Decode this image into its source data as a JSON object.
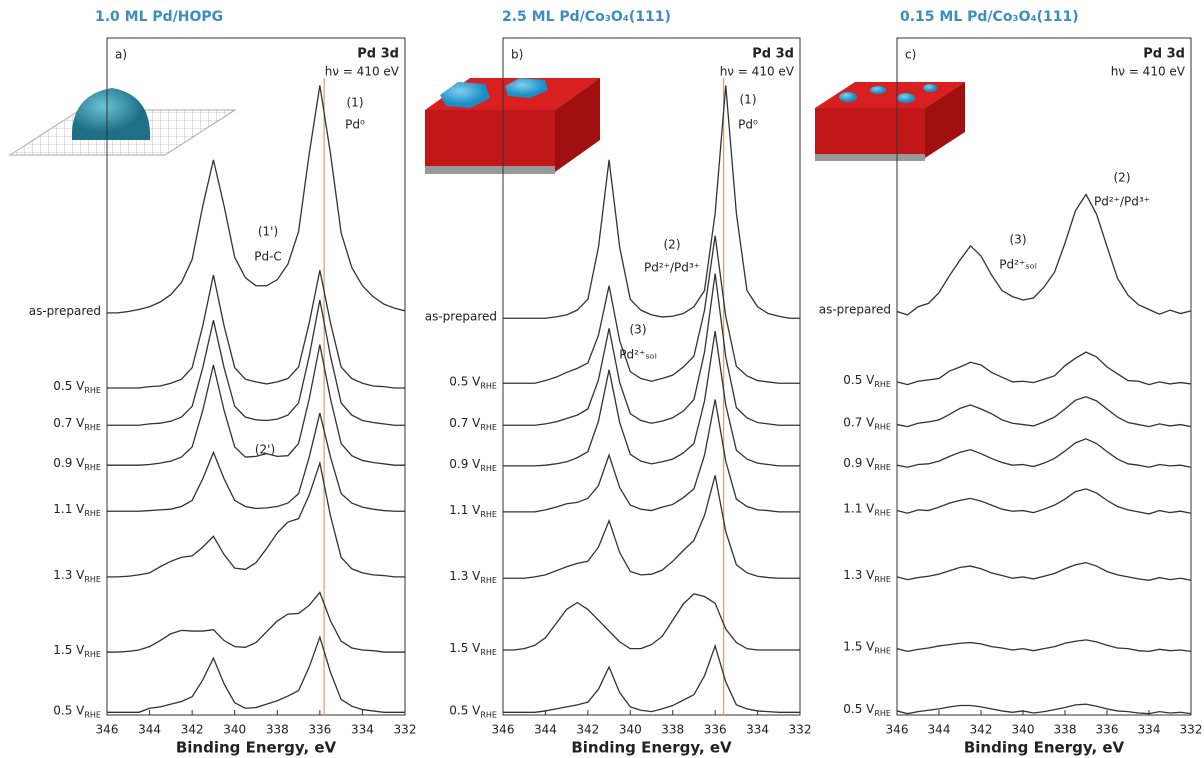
{
  "chart_data": [
    {
      "type": "line",
      "title": "1.0 ML Pd/HOPG",
      "panel_label": "a)",
      "header": "Pd 3d",
      "energy": "hν = 410 eV",
      "x_label": "Binding Energy, eV",
      "xlim": [
        346,
        332
      ],
      "xticks": [
        346,
        344,
        342,
        340,
        338,
        336,
        334,
        332
      ],
      "ylim": [
        0,
        100
      ],
      "ref_line": 335.8,
      "x": [
        346,
        345.5,
        345,
        344.5,
        344,
        343.5,
        343,
        342.5,
        342,
        341.5,
        341,
        340.5,
        340,
        339.5,
        339,
        338.5,
        338,
        337.5,
        337,
        336.5,
        336,
        335.5,
        335,
        334.5,
        334,
        333.5,
        333,
        332.5,
        332
      ],
      "series": [
        {
          "name": "as-prepared",
          "color": "#333333",
          "values": [
            59.4,
            59.4,
            59.6,
            59.9,
            60.3,
            61.0,
            62.1,
            63.9,
            67.3,
            75.2,
            82.0,
            75.2,
            67.6,
            64.6,
            63.4,
            63.4,
            64.3,
            66.6,
            71.4,
            82.9,
            93.0,
            82.9,
            71.2,
            66.1,
            63.4,
            61.8,
            60.7,
            60.1,
            59.7
          ]
        },
        {
          "name": "0.5 V",
          "name_sub": "RHE",
          "color": "#333333",
          "values": [
            48.3,
            48.3,
            48.3,
            48.3,
            48.5,
            48.6,
            49.0,
            49.6,
            51.3,
            57.5,
            65.0,
            57.5,
            51.3,
            49.6,
            49.2,
            48.9,
            49.2,
            49.7,
            51.4,
            57.9,
            65.7,
            57.9,
            51.4,
            49.7,
            49.0,
            48.6,
            48.5,
            48.3,
            48.3
          ]
        },
        {
          "name": "0.7 V",
          "name_sub": "RHE",
          "color": "#333333",
          "values": [
            42.8,
            42.8,
            42.8,
            42.8,
            43.0,
            43.1,
            43.4,
            44.0,
            45.6,
            51.3,
            58.3,
            51.3,
            45.6,
            44.0,
            43.6,
            43.5,
            43.7,
            44.3,
            46.1,
            53.0,
            61.3,
            53.0,
            46.1,
            44.3,
            43.5,
            43.2,
            43.0,
            42.8,
            42.8
          ]
        },
        {
          "name": "0.9 V",
          "name_sub": "RHE",
          "color": "#333333",
          "values": [
            36.9,
            36.9,
            36.9,
            36.9,
            37.0,
            37.2,
            37.5,
            38.1,
            39.6,
            45.0,
            51.7,
            45.0,
            39.6,
            38.1,
            38.2,
            38.6,
            38.2,
            38.3,
            40.1,
            46.7,
            54.7,
            46.7,
            40.1,
            38.3,
            37.6,
            37.3,
            37.1,
            36.9,
            36.9
          ]
        },
        {
          "name": "1.1 V",
          "name_sub": "RHE",
          "color": "#333333",
          "values": [
            30.1,
            30.1,
            30.1,
            30.1,
            30.2,
            30.3,
            30.4,
            30.8,
            31.7,
            34.9,
            38.8,
            34.9,
            31.7,
            30.8,
            30.5,
            30.6,
            30.8,
            31.3,
            32.7,
            38.1,
            44.6,
            38.1,
            32.7,
            31.3,
            30.7,
            30.4,
            30.2,
            30.1,
            30.1
          ]
        },
        {
          "name": "1.3 V",
          "name_sub": "RHE",
          "color": "#333333",
          "values": [
            20.4,
            20.4,
            20.5,
            20.7,
            21.0,
            21.9,
            22.7,
            23.3,
            23.5,
            24.8,
            26.4,
            23.7,
            21.7,
            21.5,
            22.5,
            24.6,
            26.9,
            28.5,
            29.0,
            32.5,
            37.2,
            29.4,
            23.3,
            21.6,
            21.0,
            20.7,
            20.6,
            20.4,
            20.4
          ]
        },
        {
          "name": "1.5 V",
          "name_sub": "RHE",
          "color": "#333333",
          "values": [
            9.3,
            9.3,
            9.4,
            9.6,
            10.1,
            11.0,
            12.0,
            12.5,
            12.4,
            12.4,
            12.6,
            11.0,
            10.1,
            10.0,
            10.7,
            12.3,
            13.9,
            14.9,
            15.0,
            16.2,
            18.1,
            13.9,
            10.9,
            9.9,
            9.6,
            9.5,
            9.3,
            9.3,
            9.3
          ]
        },
        {
          "name": "0.5 V",
          "name_sub": "RHE",
          "color": "#333333",
          "values": [
            0.4,
            0.4,
            0.4,
            0.4,
            1.0,
            1.2,
            1.6,
            2.0,
            2.7,
            5.2,
            8.4,
            4.6,
            1.8,
            1.0,
            1.1,
            1.6,
            2.1,
            2.8,
            3.6,
            7.1,
            11.5,
            6.3,
            2.3,
            1.3,
            0.8,
            0.6,
            0.4,
            0.4,
            0.4
          ]
        }
      ],
      "annotations": [
        "(1)",
        "Pd⁰",
        "(1')",
        "Pd-C",
        "(2')"
      ]
    },
    {
      "type": "line",
      "title": "2.5 ML Pd/Co₃O₄(111)",
      "panel_label": "b)",
      "header": "Pd 3d",
      "energy": "hν = 410 eV",
      "x_label": "Binding Energy, eV",
      "xlim": [
        346,
        332
      ],
      "xticks": [
        346,
        344,
        342,
        340,
        338,
        336,
        334,
        332
      ],
      "ylim": [
        0,
        100
      ],
      "ref_line": 335.6,
      "x": [
        346,
        345.5,
        345,
        344.5,
        344,
        343.5,
        343,
        342.5,
        342,
        341.5,
        341,
        340.5,
        340,
        339.5,
        339,
        338.5,
        338,
        337.5,
        337,
        336.5,
        336,
        335.5,
        335,
        334.5,
        334,
        333.5,
        333,
        332.5,
        332
      ],
      "series": [
        {
          "name": "as-prepared",
          "color": "#333333",
          "values": [
            58.6,
            58.6,
            58.6,
            58.6,
            58.6,
            58.8,
            59.1,
            59.8,
            61.4,
            69.1,
            82.0,
            69.1,
            61.4,
            59.8,
            59.1,
            58.8,
            58.9,
            59.3,
            60.3,
            62.7,
            74.1,
            93.0,
            74.1,
            62.7,
            60.3,
            59.3,
            58.9,
            58.6,
            58.6
          ]
        },
        {
          "name": "0.5 V",
          "name_sub": "RHE",
          "color": "#333333",
          "values": [
            49.0,
            49.0,
            49.0,
            49.0,
            49.4,
            49.9,
            50.6,
            51.2,
            52.0,
            56.1,
            63.4,
            55.3,
            50.7,
            49.7,
            49.3,
            49.7,
            50.2,
            51.4,
            53.0,
            59.8,
            70.8,
            58.9,
            51.5,
            50.1,
            49.4,
            49.2,
            49.0,
            49.0,
            49.0
          ]
        },
        {
          "name": "0.7 V",
          "name_sub": "RHE",
          "color": "#333333",
          "values": [
            42.8,
            42.8,
            42.8,
            42.8,
            43.0,
            43.3,
            43.8,
            44.3,
            45.2,
            49.5,
            57.1,
            49.1,
            44.5,
            43.5,
            43.1,
            43.4,
            43.9,
            44.9,
            46.6,
            53.6,
            65.2,
            52.9,
            45.4,
            43.9,
            43.2,
            43.0,
            42.8,
            42.8,
            42.8
          ]
        },
        {
          "name": "0.9 V",
          "name_sub": "RHE",
          "color": "#333333",
          "values": [
            36.8,
            36.8,
            36.8,
            36.8,
            36.9,
            37.1,
            37.4,
            38.0,
            38.9,
            43.4,
            51.0,
            43.2,
            38.5,
            37.5,
            37.1,
            37.4,
            37.8,
            38.7,
            40.1,
            46.4,
            56.7,
            45.8,
            39.1,
            37.8,
            37.2,
            37.0,
            36.8,
            36.8,
            36.8
          ]
        },
        {
          "name": "1.1 V",
          "name_sub": "RHE",
          "color": "#333333",
          "values": [
            30.0,
            30.0,
            30.0,
            30.0,
            30.3,
            30.7,
            31.2,
            31.4,
            32.0,
            33.9,
            38.4,
            33.6,
            31.0,
            30.4,
            30.2,
            30.7,
            31.1,
            32.1,
            33.4,
            38.4,
            46.6,
            37.5,
            31.9,
            30.8,
            30.3,
            30.2,
            30.0,
            30.0,
            30.0
          ]
        },
        {
          "name": "1.3 V",
          "name_sub": "RHE",
          "color": "#333333",
          "values": [
            20.2,
            20.2,
            20.2,
            20.4,
            20.7,
            21.3,
            21.9,
            22.4,
            22.7,
            24.8,
            28.7,
            24.0,
            21.2,
            20.7,
            20.8,
            21.4,
            22.7,
            24.3,
            25.8,
            29.5,
            35.4,
            27.1,
            22.2,
            21.0,
            20.5,
            20.3,
            20.2,
            20.2,
            20.2
          ]
        },
        {
          "name": "1.5 V",
          "name_sub": "RHE",
          "color": "#333333",
          "values": [
            9.6,
            9.6,
            9.8,
            10.3,
            11.4,
            13.5,
            15.6,
            16.6,
            15.6,
            14.0,
            12.4,
            10.8,
            9.8,
            9.8,
            10.4,
            11.6,
            14.0,
            16.4,
            17.9,
            17.5,
            16.5,
            12.7,
            10.7,
            9.8,
            9.6,
            9.6,
            9.6,
            9.6,
            9.6
          ]
        },
        {
          "name": "0.5 V",
          "name_sub": "RHE",
          "color": "#333333",
          "values": [
            0.4,
            0.4,
            0.4,
            0.4,
            0.6,
            0.9,
            1.2,
            1.5,
            1.9,
            3.8,
            7.1,
            3.3,
            1.2,
            0.7,
            0.5,
            0.9,
            1.4,
            2.2,
            3.0,
            5.8,
            10.2,
            4.9,
            1.5,
            0.9,
            0.6,
            0.5,
            0.4,
            0.4,
            0.4
          ]
        }
      ],
      "annotations": [
        "(1)",
        "Pd⁰",
        "(2)",
        "Pd²⁺/Pd³⁺",
        "(3)",
        "Pd²⁺ₛₒₗ"
      ]
    },
    {
      "type": "line",
      "title": "0.15 ML Pd/Co₃O₄(111)",
      "panel_label": "c)",
      "header": "Pd 3d",
      "energy": "hν = 410 eV",
      "x_label": "Binding Energy, eV",
      "xlim": [
        346,
        332
      ],
      "xticks": [
        346,
        344,
        342,
        340,
        338,
        336,
        334,
        332
      ],
      "ylim": [
        0,
        100
      ],
      "x": [
        346,
        345.5,
        345,
        344.5,
        344,
        343.5,
        343,
        342.5,
        342,
        341.5,
        341,
        340.5,
        340,
        339.5,
        339,
        338.5,
        338,
        337.5,
        337,
        336.5,
        336,
        335.5,
        335,
        334.5,
        334,
        333.5,
        333,
        332.5,
        332
      ],
      "series": [
        {
          "name": "as-prepared",
          "color": "#333333",
          "values": [
            59.6,
            59.1,
            60.3,
            60.8,
            62.4,
            64.9,
            67.2,
            69.3,
            67.8,
            65.0,
            62.7,
            61.8,
            61.3,
            61.6,
            63.2,
            65.4,
            69.7,
            74.5,
            76.9,
            74.0,
            69.2,
            64.5,
            62.0,
            60.6,
            59.9,
            59.2,
            59.8,
            59.3,
            59.7
          ]
        },
        {
          "name": "0.5 V",
          "name_sub": "RHE",
          "color": "#333333",
          "values": [
            49.2,
            48.8,
            49.3,
            49.5,
            49.7,
            50.8,
            51.4,
            52.1,
            51.7,
            50.6,
            49.9,
            49.2,
            49.3,
            49.1,
            49.6,
            50.1,
            51.6,
            52.7,
            53.6,
            52.9,
            51.4,
            50.4,
            49.4,
            49.3,
            48.8,
            49.2,
            48.9,
            49.1,
            48.9
          ]
        },
        {
          "name": "0.7 V",
          "name_sub": "RHE",
          "color": "#333333",
          "values": [
            42.9,
            42.6,
            43.1,
            43.3,
            43.6,
            44.4,
            45.3,
            45.8,
            45.2,
            44.5,
            43.6,
            43.1,
            42.9,
            42.7,
            43.3,
            44.0,
            45.2,
            46.5,
            47.0,
            46.4,
            45.2,
            44.0,
            43.2,
            42.9,
            42.6,
            43.0,
            42.7,
            42.9,
            42.6
          ]
        },
        {
          "name": "0.9 V",
          "name_sub": "RHE",
          "color": "#333333",
          "values": [
            36.9,
            36.6,
            37.0,
            37.1,
            37.5,
            38.2,
            38.8,
            39.2,
            38.6,
            37.9,
            37.3,
            36.9,
            37.0,
            36.7,
            37.2,
            37.9,
            39.0,
            40.2,
            40.8,
            40.1,
            38.9,
            37.8,
            37.1,
            36.9,
            36.6,
            37.0,
            36.8,
            36.9,
            36.6
          ]
        },
        {
          "name": "1.1 V",
          "name_sub": "RHE",
          "color": "#333333",
          "values": [
            30.2,
            29.8,
            30.3,
            30.2,
            30.7,
            31.3,
            31.7,
            32.0,
            31.6,
            31.0,
            30.4,
            30.1,
            30.2,
            29.9,
            30.4,
            31.0,
            31.9,
            33.0,
            33.4,
            32.8,
            31.7,
            30.8,
            30.3,
            30.0,
            29.7,
            30.2,
            29.9,
            30.1,
            29.8
          ]
        },
        {
          "name": "1.3 V",
          "name_sub": "RHE",
          "color": "#333333",
          "values": [
            20.4,
            20.0,
            20.3,
            20.5,
            20.8,
            21.3,
            21.8,
            22.0,
            21.6,
            21.0,
            20.6,
            20.2,
            20.4,
            20.1,
            20.5,
            20.9,
            21.6,
            22.2,
            22.5,
            22.0,
            21.2,
            20.7,
            20.4,
            20.1,
            19.9,
            20.3,
            20.0,
            20.2,
            19.9
          ]
        },
        {
          "name": "1.5 V",
          "name_sub": "RHE",
          "color": "#333333",
          "values": [
            9.8,
            9.4,
            9.7,
            9.9,
            10.2,
            10.4,
            10.6,
            10.7,
            10.5,
            10.1,
            9.9,
            9.6,
            9.8,
            9.5,
            9.8,
            10.1,
            10.6,
            10.9,
            11.1,
            10.8,
            10.3,
            9.9,
            9.8,
            9.5,
            9.4,
            9.7,
            9.5,
            9.6,
            9.4
          ]
        },
        {
          "name": "0.5 V",
          "name_sub": "RHE",
          "color": "#333333",
          "values": [
            0.6,
            0.2,
            0.5,
            0.7,
            0.9,
            1.2,
            1.4,
            1.4,
            1.2,
            0.9,
            0.6,
            0.4,
            0.6,
            0.3,
            0.5,
            0.8,
            1.1,
            1.5,
            1.6,
            1.3,
            0.9,
            0.6,
            0.5,
            0.3,
            0.2,
            0.5,
            0.3,
            0.4,
            0.2
          ]
        }
      ],
      "annotations": [
        "(2)",
        "Pd²⁺/Pd³⁺",
        "(3)",
        "Pd²⁺ₛₒₗ"
      ]
    }
  ]
}
